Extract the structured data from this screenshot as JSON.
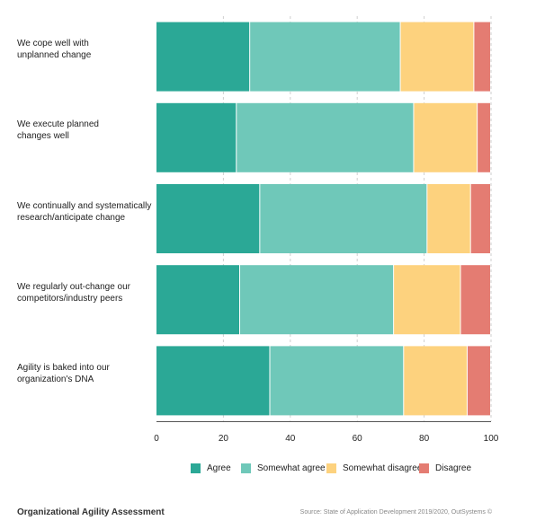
{
  "chart_data": {
    "type": "bar",
    "orientation": "horizontal",
    "stacked": true,
    "title": "Organizational Agility Assessment",
    "source": "Source: State of Application Development 2019/2020, OutSystems ©",
    "categories": [
      [
        "We cope well with",
        "unplanned change"
      ],
      [
        "We execute planned",
        "changes well"
      ],
      [
        "We continually and systematically",
        "research/anticipate change"
      ],
      [
        "We regularly out-change our",
        "competitors/industry peers"
      ],
      [
        "Agility is baked into our",
        "organization's DNA"
      ]
    ],
    "series": [
      {
        "name": "Agree",
        "color": "#2ba896",
        "values": [
          28,
          24,
          31,
          25,
          34
        ]
      },
      {
        "name": "Somewhat agree",
        "color": "#6fc8b9",
        "values": [
          45,
          53,
          50,
          46,
          40
        ]
      },
      {
        "name": "Somewhat disagree",
        "color": "#fdd27e",
        "values": [
          22,
          19,
          13,
          20,
          19
        ]
      },
      {
        "name": "Disagree",
        "color": "#e47c72",
        "values": [
          5,
          4,
          6,
          9,
          7
        ]
      }
    ],
    "xlim": [
      0,
      100
    ],
    "xticks": [
      0,
      20,
      40,
      60,
      80,
      100
    ],
    "grid": "vertical-dashed",
    "legend_position": "bottom"
  }
}
